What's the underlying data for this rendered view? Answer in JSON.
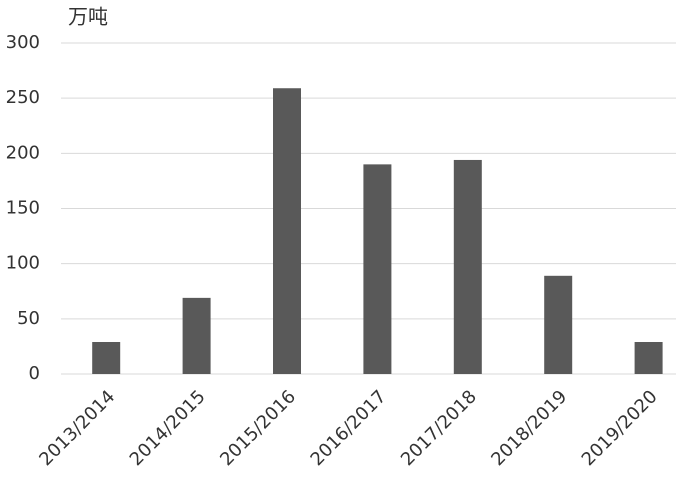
{
  "chart_data": {
    "type": "bar",
    "y_axis_label": "万吨",
    "categories": [
      "2013/2014",
      "2014/2015",
      "2015/2016",
      "2016/2017",
      "2017/2018",
      "2018/2019",
      "2019/2020"
    ],
    "values": [
      29,
      69,
      259,
      190,
      194,
      89,
      29
    ],
    "color": "#595959",
    "ylim": [
      0,
      300
    ],
    "yticks": [
      0,
      50,
      100,
      150,
      200,
      250,
      300
    ],
    "grid": true
  }
}
